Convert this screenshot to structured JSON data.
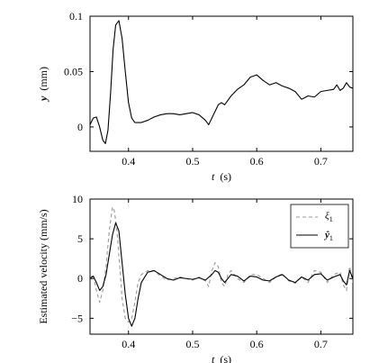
{
  "chart_data": [
    {
      "type": "line",
      "xlabel": "t (s)",
      "xlabel_var": "t",
      "xlabel_unit": "(s)",
      "ylabel": "y (mm)",
      "ylabel_var": "y",
      "ylabel_unit": "(mm)",
      "xlim": [
        0.34,
        0.75
      ],
      "ylim": [
        -0.022,
        0.1
      ],
      "xticks": [
        0.4,
        0.5,
        0.6,
        0.7
      ],
      "xtick_labels": [
        "0.4",
        "0.5",
        "0.6",
        "0.7"
      ],
      "yticks": [
        0,
        0.05,
        0.1
      ],
      "ytick_labels": [
        "0",
        "0.05",
        "0.1"
      ],
      "grid": false,
      "legend": null,
      "series": [
        {
          "color": "#000000",
          "style": "solid",
          "x": [
            0.34,
            0.345,
            0.35,
            0.355,
            0.36,
            0.364,
            0.368,
            0.372,
            0.376,
            0.38,
            0.385,
            0.39,
            0.395,
            0.4,
            0.405,
            0.41,
            0.42,
            0.43,
            0.44,
            0.45,
            0.46,
            0.47,
            0.48,
            0.49,
            0.5,
            0.51,
            0.52,
            0.525,
            0.53,
            0.54,
            0.545,
            0.55,
            0.56,
            0.57,
            0.58,
            0.59,
            0.6,
            0.61,
            0.62,
            0.63,
            0.64,
            0.65,
            0.66,
            0.67,
            0.68,
            0.69,
            0.7,
            0.71,
            0.72,
            0.725,
            0.73,
            0.735,
            0.74,
            0.745,
            0.75
          ],
          "y": [
            0.002,
            0.008,
            0.009,
            0.0,
            -0.012,
            -0.015,
            -0.003,
            0.03,
            0.07,
            0.092,
            0.096,
            0.08,
            0.05,
            0.022,
            0.008,
            0.004,
            0.004,
            0.006,
            0.009,
            0.011,
            0.012,
            0.012,
            0.011,
            0.012,
            0.013,
            0.011,
            0.006,
            0.002,
            0.008,
            0.02,
            0.022,
            0.02,
            0.028,
            0.034,
            0.038,
            0.045,
            0.047,
            0.042,
            0.038,
            0.04,
            0.037,
            0.035,
            0.032,
            0.025,
            0.028,
            0.027,
            0.032,
            0.033,
            0.034,
            0.038,
            0.033,
            0.035,
            0.04,
            0.036,
            0.035
          ]
        }
      ]
    },
    {
      "type": "line",
      "xlabel": "t (s)",
      "xlabel_var": "t",
      "xlabel_unit": "(s)",
      "ylabel": "Estimated velocity (mm/s)",
      "xlim": [
        0.34,
        0.75
      ],
      "ylim": [
        -7,
        10
      ],
      "xticks": [
        0.4,
        0.5,
        0.6,
        0.7
      ],
      "xtick_labels": [
        "0.4",
        "0.5",
        "0.6",
        "0.7"
      ],
      "yticks": [
        -5,
        0,
        5,
        10
      ],
      "ytick_labels": [
        "−5",
        "0",
        "5",
        "10"
      ],
      "grid": false,
      "legend": "top-right",
      "series": [
        {
          "name": "ξ",
          "name_sub": "1",
          "color": "#999999",
          "style": "dashed",
          "x": [
            0.34,
            0.345,
            0.35,
            0.355,
            0.36,
            0.365,
            0.37,
            0.375,
            0.378,
            0.382,
            0.386,
            0.39,
            0.395,
            0.4,
            0.405,
            0.41,
            0.415,
            0.42,
            0.43,
            0.44,
            0.45,
            0.46,
            0.47,
            0.48,
            0.49,
            0.5,
            0.51,
            0.52,
            0.525,
            0.53,
            0.535,
            0.54,
            0.545,
            0.55,
            0.555,
            0.56,
            0.57,
            0.58,
            0.59,
            0.6,
            0.61,
            0.62,
            0.63,
            0.64,
            0.65,
            0.66,
            0.67,
            0.68,
            0.69,
            0.7,
            0.71,
            0.72,
            0.73,
            0.735,
            0.74,
            0.745,
            0.75
          ],
          "y": [
            0.0,
            0.5,
            -1.5,
            -3.0,
            -1.5,
            1.5,
            6.0,
            9.0,
            8.5,
            6.0,
            2.0,
            -2.5,
            -5.0,
            -5.5,
            -5.0,
            -3.0,
            -0.5,
            0.5,
            1.0,
            1.0,
            0.3,
            -0.2,
            0.0,
            0.2,
            0.0,
            -0.2,
            0.2,
            -0.3,
            -1.0,
            1.0,
            2.0,
            1.5,
            -0.5,
            -1.0,
            0.5,
            1.0,
            0.0,
            -0.5,
            0.5,
            0.5,
            0.0,
            -0.5,
            0.2,
            0.6,
            -0.3,
            -0.6,
            0.2,
            -0.5,
            1.0,
            0.8,
            -0.5,
            0.5,
            0.8,
            -0.8,
            -1.5,
            1.5,
            -0.5
          ]
        },
        {
          "name": "ŷ",
          "name_sub": "1",
          "color": "#000000",
          "style": "solid",
          "x": [
            0.34,
            0.345,
            0.35,
            0.355,
            0.36,
            0.365,
            0.37,
            0.375,
            0.38,
            0.385,
            0.39,
            0.395,
            0.4,
            0.405,
            0.41,
            0.415,
            0.42,
            0.43,
            0.44,
            0.45,
            0.46,
            0.47,
            0.48,
            0.49,
            0.5,
            0.51,
            0.52,
            0.53,
            0.535,
            0.54,
            0.545,
            0.55,
            0.56,
            0.57,
            0.58,
            0.59,
            0.6,
            0.61,
            0.62,
            0.63,
            0.64,
            0.65,
            0.66,
            0.67,
            0.68,
            0.69,
            0.7,
            0.71,
            0.72,
            0.73,
            0.735,
            0.74,
            0.745,
            0.75
          ],
          "y": [
            0.0,
            0.3,
            -0.5,
            -1.5,
            -1.0,
            0.5,
            3.0,
            5.5,
            7.0,
            6.0,
            2.0,
            -2.0,
            -5.0,
            -6.0,
            -5.0,
            -2.5,
            -0.5,
            0.8,
            1.0,
            0.5,
            0.0,
            -0.2,
            0.1,
            0.0,
            -0.1,
            0.1,
            -0.2,
            0.5,
            1.0,
            0.8,
            0.0,
            -0.5,
            0.5,
            0.3,
            -0.3,
            0.3,
            0.2,
            -0.2,
            -0.3,
            0.2,
            0.5,
            -0.2,
            -0.5,
            0.2,
            -0.2,
            0.5,
            0.6,
            -0.2,
            0.2,
            0.5,
            -0.3,
            -0.8,
            1.0,
            0.0
          ]
        }
      ]
    }
  ]
}
